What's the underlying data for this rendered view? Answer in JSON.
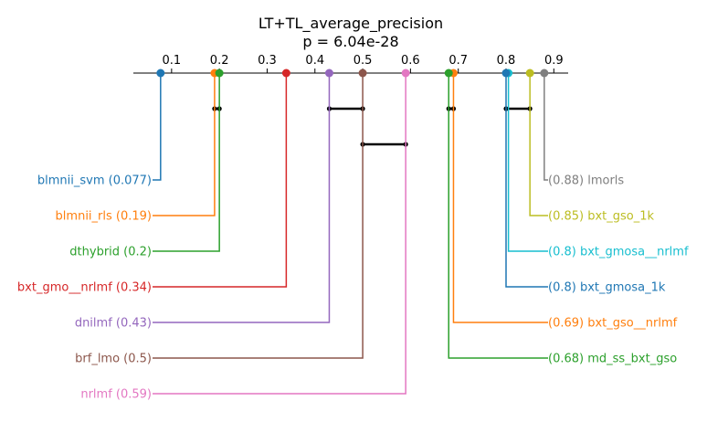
{
  "chart_data": {
    "type": "critical-difference",
    "title": "LT+TL_average_precision",
    "subtitle": "p = 6.04e-28",
    "xlim": [
      0.02,
      0.93
    ],
    "ticks": [
      0.1,
      0.2,
      0.3,
      0.4,
      0.5,
      0.6,
      0.7,
      0.8,
      0.9
    ],
    "tick_labels": [
      "0.1",
      "0.2",
      "0.3",
      "0.4",
      "0.5",
      "0.6",
      "0.7",
      "0.8",
      "0.9"
    ],
    "methods_left": [
      {
        "name": "blmnii_svm",
        "value": 0.077,
        "label": "blmnii_svm (0.077)",
        "color": "#1f77b4"
      },
      {
        "name": "blmnii_rls",
        "value": 0.19,
        "label": "blmnii_rls (0.19)",
        "color": "#ff7f0e"
      },
      {
        "name": "dthybrid",
        "value": 0.2,
        "label": "dthybrid (0.2)",
        "color": "#2ca02c"
      },
      {
        "name": "bxt_gmo__nrlmf",
        "value": 0.34,
        "label": "bxt_gmo__nrlmf (0.34)",
        "color": "#d62728"
      },
      {
        "name": "dnilmf",
        "value": 0.43,
        "label": "dnilmf (0.43)",
        "color": "#9467bd"
      },
      {
        "name": "brf_lmo",
        "value": 0.5,
        "label": "brf_lmo (0.5)",
        "color": "#8c564b"
      },
      {
        "name": "nrlmf",
        "value": 0.59,
        "label": "nrlmf (0.59)",
        "color": "#e377c2"
      }
    ],
    "methods_right": [
      {
        "name": "lmorls",
        "value": 0.88,
        "label": "(0.88) lmorls",
        "color": "#7f7f7f"
      },
      {
        "name": "bxt_gso_1k",
        "value": 0.85,
        "label": "(0.85) bxt_gso_1k",
        "color": "#bcbd22"
      },
      {
        "name": "bxt_gmosa__nrlmf",
        "value": 0.805,
        "label": "(0.8) bxt_gmosa__nrlmf",
        "color": "#17becf"
      },
      {
        "name": "bxt_gmosa_1k",
        "value": 0.8,
        "label": "(0.8) bxt_gmosa_1k",
        "color": "#1f77b4"
      },
      {
        "name": "bxt_gso__nrlmf",
        "value": 0.69,
        "label": "(0.69) bxt_gso__nrlmf",
        "color": "#ff7f0e"
      },
      {
        "name": "md_ss_bxt_gso",
        "value": 0.68,
        "label": "(0.68) md_ss_bxt_gso",
        "color": "#2ca02c"
      }
    ],
    "cliques": [
      {
        "from": 0.19,
        "to": 0.2,
        "level": 0
      },
      {
        "from": 0.43,
        "to": 0.5,
        "level": 0
      },
      {
        "from": 0.68,
        "to": 0.69,
        "level": 0
      },
      {
        "from": 0.8,
        "to": 0.85,
        "level": 0
      },
      {
        "from": 0.5,
        "to": 0.59,
        "level": 1
      }
    ]
  }
}
